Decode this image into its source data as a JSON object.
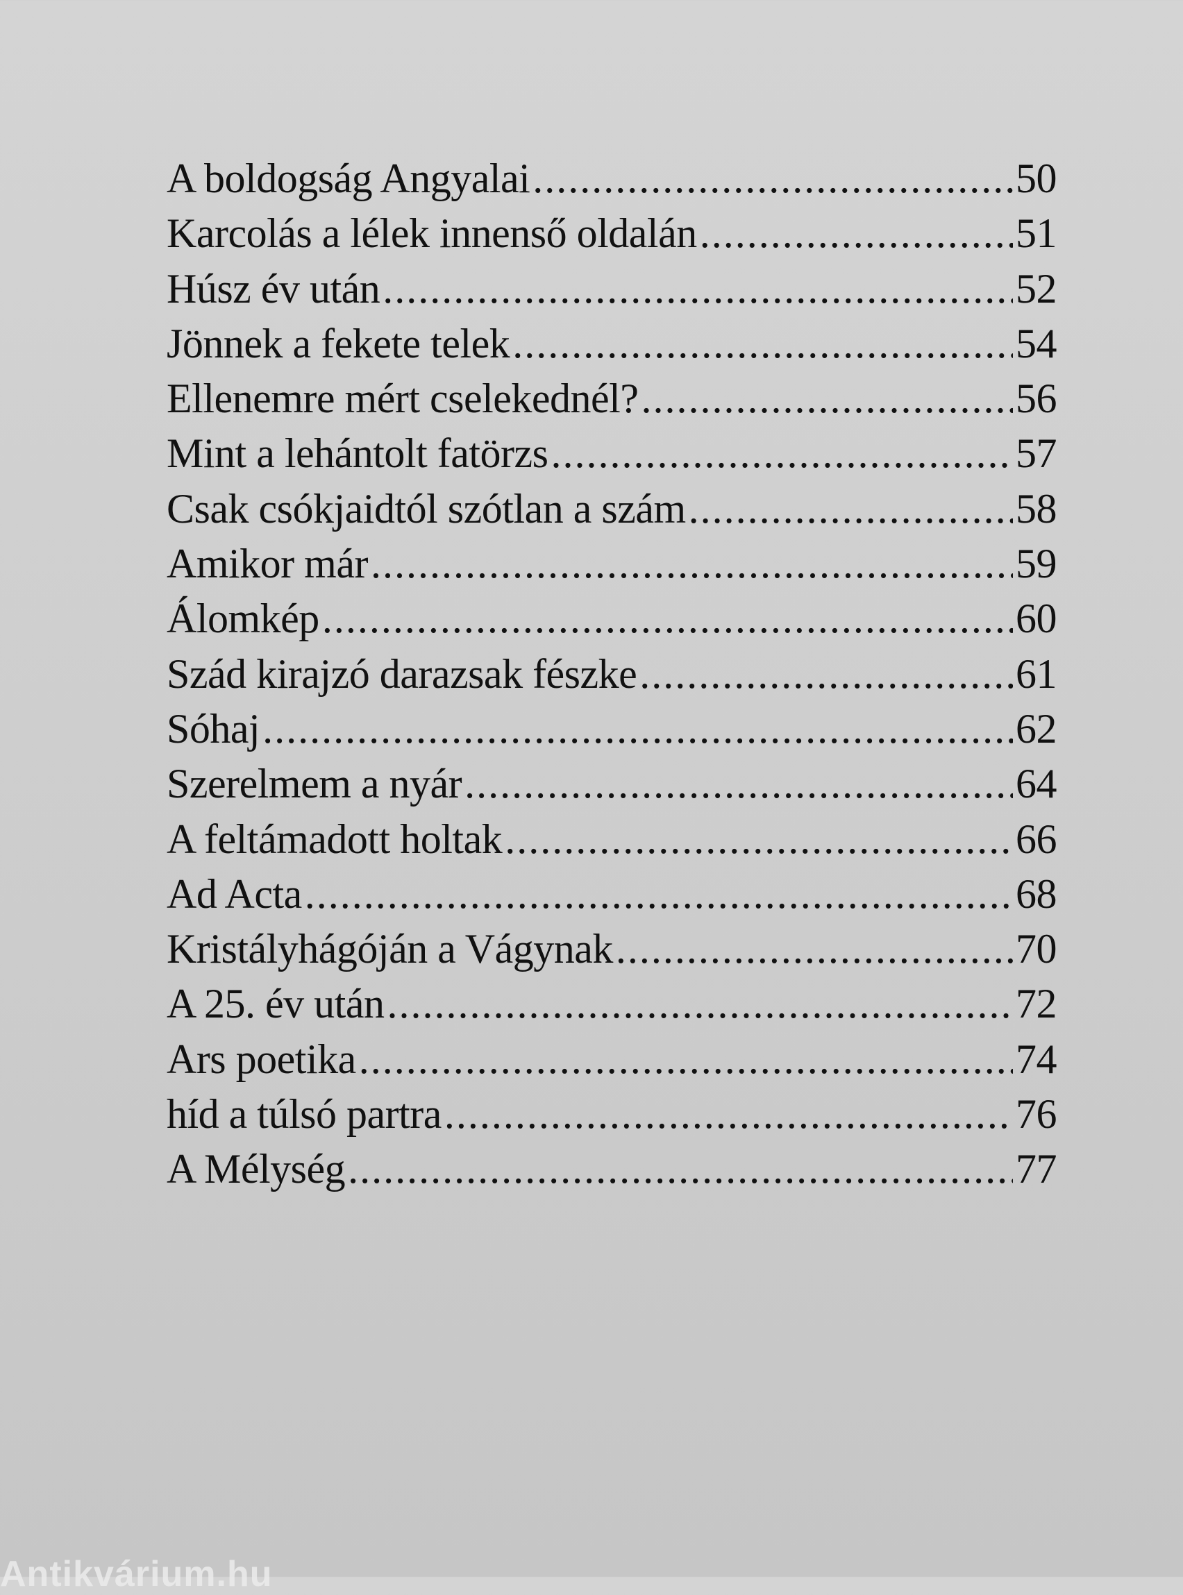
{
  "toc": {
    "entries": [
      {
        "title": "A boldogság Angyalai",
        "page": "50"
      },
      {
        "title": "Karcolás a lélek innenső oldalán",
        "page": "51"
      },
      {
        "title": "Húsz év után",
        "page": "52"
      },
      {
        "title": "Jönnek a fekete telek",
        "page": "54"
      },
      {
        "title": "Ellenemre mért cselekednél?",
        "page": "56"
      },
      {
        "title": "Mint a lehántolt fatörzs",
        "page": "57"
      },
      {
        "title": "Csak csókjaidtól szótlan a szám",
        "page": "58"
      },
      {
        "title": "Amikor már",
        "page": "59"
      },
      {
        "title": "Álomkép",
        "page": "60"
      },
      {
        "title": "Szád kirajzó darazsak fészke",
        "page": "61"
      },
      {
        "title": "Sóhaj",
        "page": "62"
      },
      {
        "title": "Szerelmem a nyár",
        "page": "64"
      },
      {
        "title": "A feltámadott holtak",
        "page": "66"
      },
      {
        "title": "Ad Acta",
        "page": "68"
      },
      {
        "title": "Kristályhágóján a Vágynak",
        "page": "70"
      },
      {
        "title": "A 25. év után",
        "page": "72"
      },
      {
        "title": "Ars poetika",
        "page": "74"
      },
      {
        "title": "híd a túlsó partra",
        "page": "76"
      },
      {
        "title": "A Mélység",
        "page": "77"
      }
    ]
  },
  "watermark": "Antikvárium.hu"
}
